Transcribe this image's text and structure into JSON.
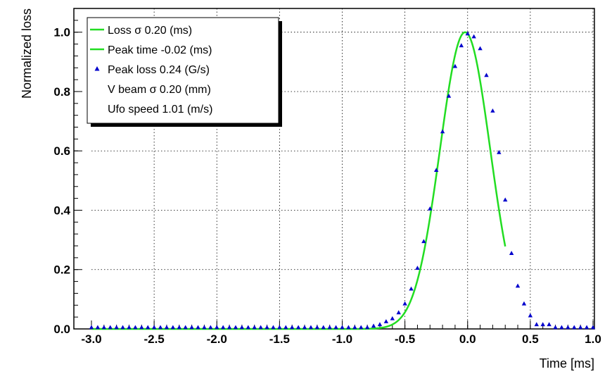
{
  "chart_data": {
    "type": "scatter",
    "xlabel": "Time [ms]",
    "ylabel": "Normalized loss",
    "xlim": [
      -3.0,
      1.0
    ],
    "ylim": [
      0.0,
      1.08
    ],
    "grid": true,
    "legend_position": "top-left",
    "x_ticks": [
      -3.0,
      -2.5,
      -2.0,
      -1.5,
      -1.0,
      -0.5,
      0.0,
      0.5,
      1.0
    ],
    "x_tick_labels": [
      "-3.0",
      "-2.5",
      "-2.0",
      "-1.5",
      "-1.0",
      "-0.5",
      "0.0",
      "0.5",
      "1.0"
    ],
    "y_ticks": [
      0.0,
      0.2,
      0.4,
      0.6,
      0.8,
      1.0
    ],
    "y_tick_labels": [
      "0.0",
      "0.2",
      "0.4",
      "0.6",
      "0.8",
      "1.0"
    ],
    "legend": [
      {
        "text": "Loss σ   0.20 (ms)",
        "marker": "line",
        "color": "#22dd22"
      },
      {
        "text": "Peak time  -0.02 (ms)",
        "marker": "line",
        "color": "#22dd22"
      },
      {
        "text": "Peak loss  0.24 (G/s)",
        "marker": "triangle",
        "color": "#0000cc"
      },
      {
        "text": "V beam σ  0.20 (mm)",
        "marker": "none",
        "color": ""
      },
      {
        "text": "Ufo speed   1.01 (m/s)",
        "marker": "none",
        "color": ""
      }
    ],
    "series": [
      {
        "marker": "triangle",
        "color": "#0000cc",
        "x": [
          -3.0,
          -2.95,
          -2.9,
          -2.85,
          -2.8,
          -2.75,
          -2.7,
          -2.65,
          -2.6,
          -2.55,
          -2.5,
          -2.45,
          -2.4,
          -2.35,
          -2.3,
          -2.25,
          -2.2,
          -2.15,
          -2.1,
          -2.05,
          -2.0,
          -1.95,
          -1.9,
          -1.85,
          -1.8,
          -1.75,
          -1.7,
          -1.65,
          -1.6,
          -1.55,
          -1.5,
          -1.45,
          -1.4,
          -1.35,
          -1.3,
          -1.25,
          -1.2,
          -1.15,
          -1.1,
          -1.05,
          -1.0,
          -0.95,
          -0.9,
          -0.85,
          -0.8,
          -0.75,
          -0.7,
          -0.65,
          -0.6,
          -0.55,
          -0.5,
          -0.45,
          -0.4,
          -0.35,
          -0.3,
          -0.25,
          -0.2,
          -0.15,
          -0.1,
          -0.05,
          0.0,
          0.05,
          0.1,
          0.15,
          0.2,
          0.25,
          0.3,
          0.35,
          0.4,
          0.45,
          0.5,
          0.55,
          0.6,
          0.65,
          0.7,
          0.75,
          0.8,
          0.85,
          0.9,
          0.95,
          1.0
        ],
        "y": [
          0.0,
          0.0,
          0.0,
          0.0,
          0.0,
          0.0,
          0.0,
          0.0,
          0.0,
          0.0,
          0.0,
          0.0,
          0.0,
          0.0,
          0.0,
          0.0,
          0.0,
          0.0,
          0.0,
          0.0,
          0.0,
          0.0,
          0.0,
          0.0,
          0.0,
          0.0,
          0.0,
          0.0,
          0.0,
          0.0,
          0.0,
          0.0,
          0.0,
          0.0,
          0.0,
          0.0,
          0.0,
          0.0,
          0.0,
          0.0,
          0.0,
          0.0,
          0.0,
          0.0,
          0.0,
          0.005,
          0.01,
          0.02,
          0.03,
          0.05,
          0.08,
          0.13,
          0.2,
          0.29,
          0.4,
          0.53,
          0.66,
          0.78,
          0.88,
          0.95,
          0.99,
          0.98,
          0.94,
          0.85,
          0.73,
          0.59,
          0.43,
          0.25,
          0.14,
          0.08,
          0.04,
          0.01,
          0.01,
          0.01,
          0.0,
          0.0,
          0.0,
          0.0,
          0.0,
          0.0,
          0.0
        ]
      },
      {
        "marker": "line",
        "color": "#22dd22",
        "fit": {
          "mean": -0.02,
          "sigma": 0.2,
          "amplitude": 1.0,
          "x_from": -3.0,
          "x_to": 0.3
        }
      }
    ]
  }
}
